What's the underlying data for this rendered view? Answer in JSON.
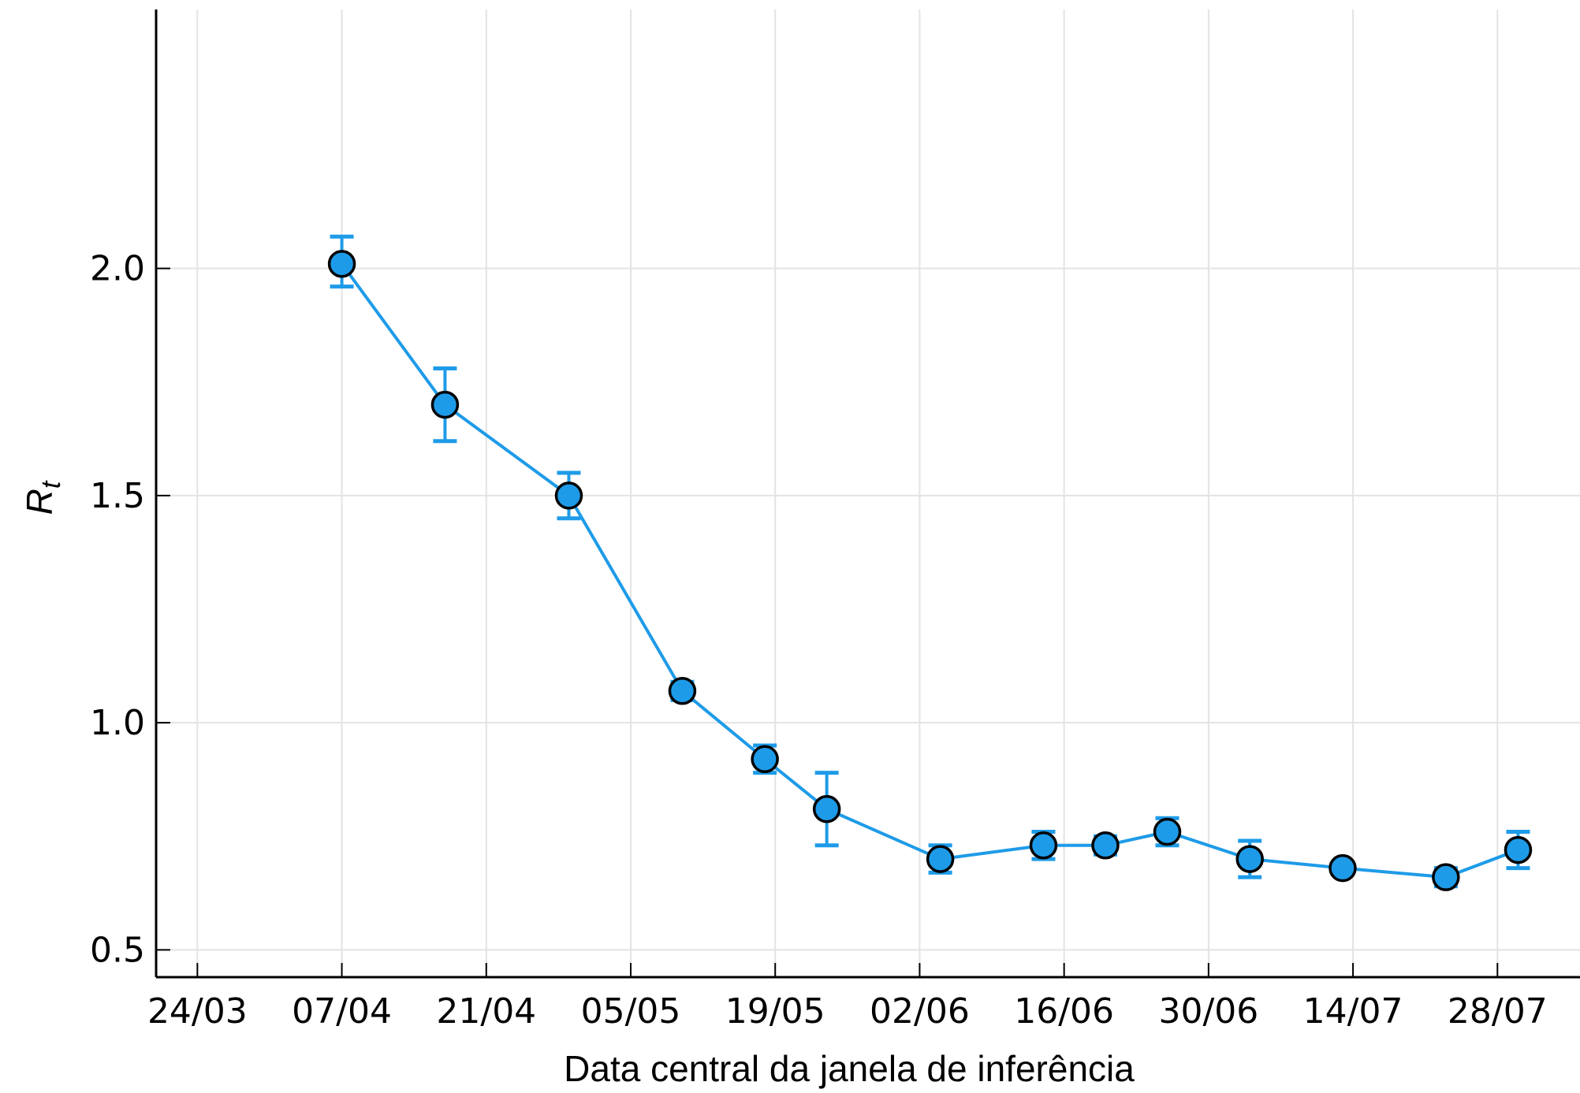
{
  "chart_data": {
    "type": "line",
    "xlabel": "Data central da janela de inferência",
    "ylabel": "R",
    "ylabel_subscript": "t",
    "x_tick_labels": [
      "24/03",
      "07/04",
      "21/04",
      "05/05",
      "19/05",
      "02/06",
      "16/06",
      "30/06",
      "14/07",
      "28/07"
    ],
    "y_tick_labels": [
      "0.5",
      "1.0",
      "1.5",
      "2.0"
    ],
    "y_ticks": [
      0.5,
      1.0,
      1.5,
      2.0
    ],
    "xlim": [
      "2020-03-20",
      "2020-08-05"
    ],
    "ylim": [
      0.44,
      2.57
    ],
    "grid": true,
    "legend": "none",
    "series": [
      {
        "color": "#1e9be8",
        "marker_outline": "#000000",
        "points": [
          {
            "x": "2020-04-07",
            "y": 2.01,
            "err_low": 1.96,
            "err_high": 2.07
          },
          {
            "x": "2020-04-17",
            "y": 1.7,
            "err_low": 1.62,
            "err_high": 1.78
          },
          {
            "x": "2020-04-29",
            "y": 1.5,
            "err_low": 1.45,
            "err_high": 1.55
          },
          {
            "x": "2020-05-10",
            "y": 1.07,
            "err_low": 1.05,
            "err_high": 1.09
          },
          {
            "x": "2020-05-18",
            "y": 0.92,
            "err_low": 0.89,
            "err_high": 0.95
          },
          {
            "x": "2020-05-24",
            "y": 0.81,
            "err_low": 0.73,
            "err_high": 0.89
          },
          {
            "x": "2020-06-04",
            "y": 0.7,
            "err_low": 0.67,
            "err_high": 0.73
          },
          {
            "x": "2020-06-14",
            "y": 0.73,
            "err_low": 0.7,
            "err_high": 0.76
          },
          {
            "x": "2020-06-20",
            "y": 0.73,
            "err_low": 0.71,
            "err_high": 0.75
          },
          {
            "x": "2020-06-26",
            "y": 0.76,
            "err_low": 0.73,
            "err_high": 0.79
          },
          {
            "x": "2020-07-04",
            "y": 0.7,
            "err_low": 0.66,
            "err_high": 0.74
          },
          {
            "x": "2020-07-13",
            "y": 0.68,
            "err_low": 0.67,
            "err_high": 0.69
          },
          {
            "x": "2020-07-23",
            "y": 0.66,
            "err_low": 0.64,
            "err_high": 0.68
          },
          {
            "x": "2020-07-30",
            "y": 0.72,
            "err_low": 0.68,
            "err_high": 0.76
          }
        ]
      }
    ]
  }
}
